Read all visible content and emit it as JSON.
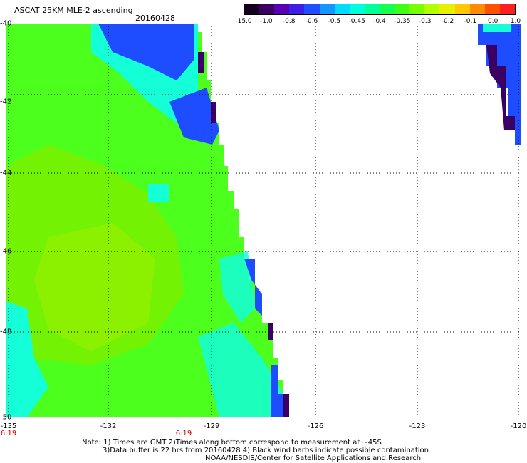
{
  "header": {
    "title": "ASCAT 25KM MLE-2 ascending",
    "date": "20160428"
  },
  "colorbar": {
    "labels": [
      "-15.0",
      "-1.0",
      "-0.8",
      "-0.6",
      "-0.5",
      "-0.45",
      "-0.4",
      "-0.35",
      "-0.3",
      "-0.2",
      "-0.1",
      "0.0",
      "1.0"
    ],
    "colors": [
      "#14001e",
      "#3c0064",
      "#5a00b4",
      "#3c1ee6",
      "#1e50ff",
      "#1496ff",
      "#00dcff",
      "#00ffdc",
      "#00ff96",
      "#14ff50",
      "#3cff14",
      "#78ff00",
      "#b4ff00",
      "#e6f000",
      "#ffc800",
      "#ff8c00",
      "#ff5000",
      "#ff1e1e"
    ]
  },
  "map": {
    "lat_labels": [
      "-40",
      "-42",
      "-44",
      "-46",
      "-48",
      "-50"
    ],
    "lon_labels": [
      "-135",
      "-132",
      "-129",
      "-126",
      "-123",
      "-120"
    ],
    "time_labels": [
      "6:19",
      "6:19"
    ],
    "colors": {
      "green": "#4cff1c",
      "yellowgreen": "#7af000",
      "cyan": "#14ffd8",
      "blue": "#1e4cff",
      "purple": "#3a0064"
    }
  },
  "notes": {
    "line1": "Note: 1) Times are GMT 2)Times along bottom correspond to measurement at ~45S",
    "line2": "3)Data buffer is 22 hrs from 20160428 4) Black wind barbs indicate possible contamination",
    "line3": "NOAA/NESDIS/Center for Satellite Applications and Research"
  }
}
